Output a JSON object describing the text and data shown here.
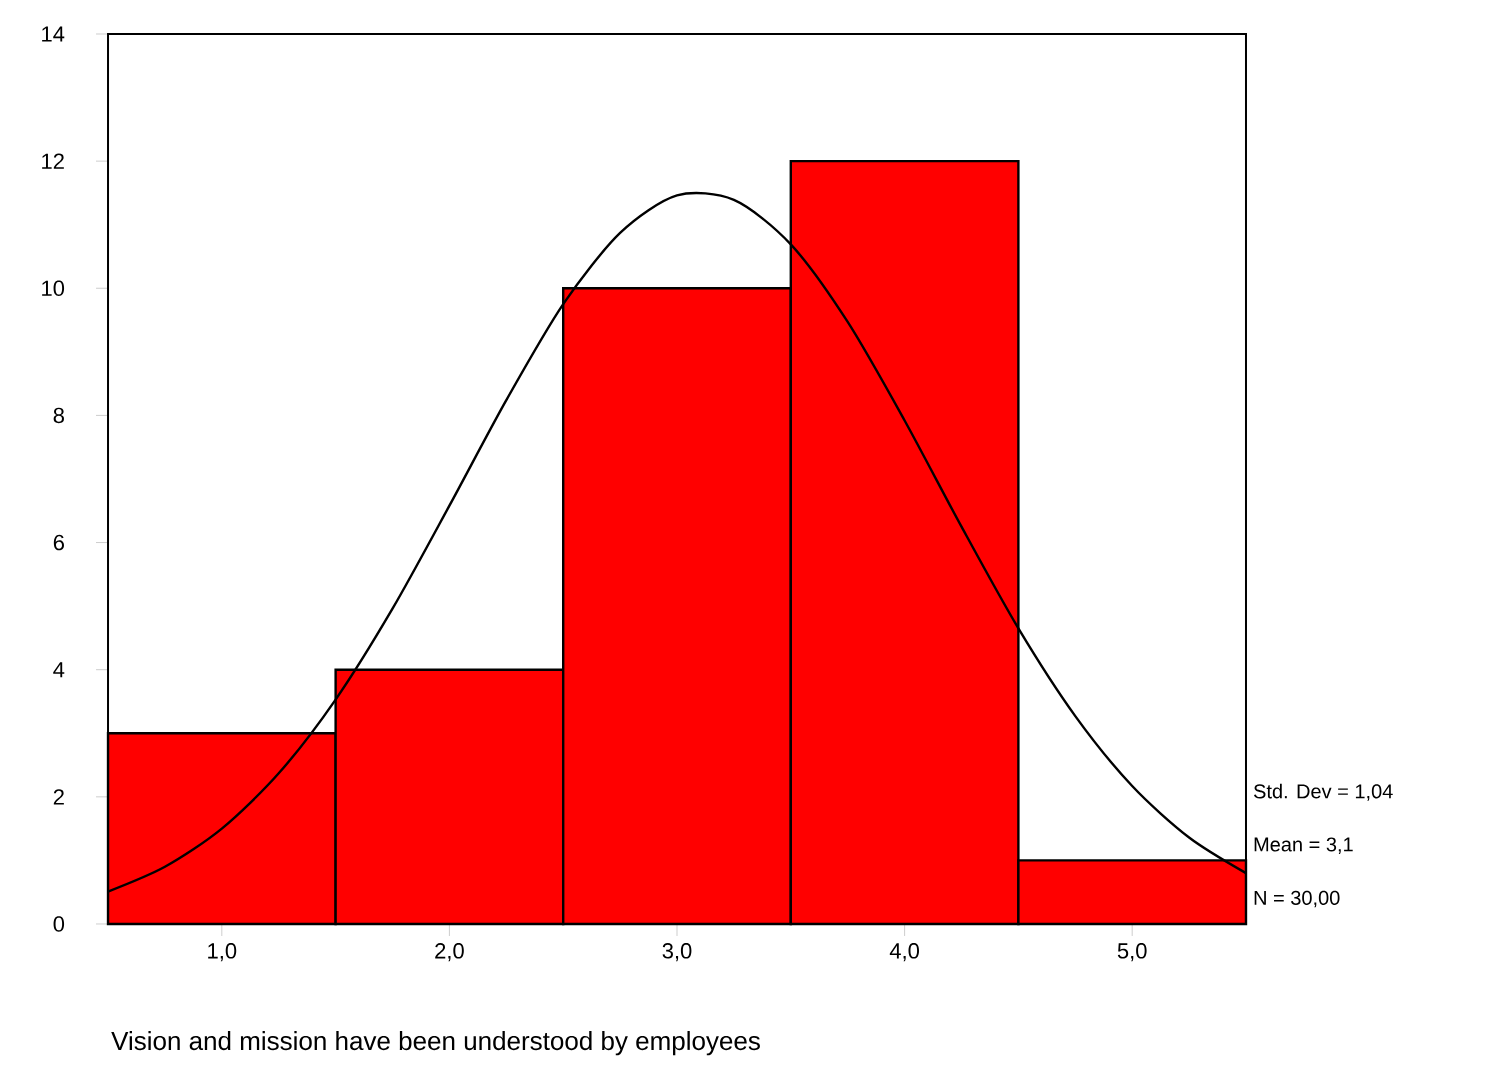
{
  "chart_data": {
    "type": "histogram",
    "xlabel": "Vision and mission have been understood by employees",
    "series": [
      {
        "bins": [
          0.5,
          1.5,
          2.5,
          3.5,
          4.5,
          5.5
        ],
        "values": [
          3,
          4,
          10,
          12,
          1
        ],
        "color": "#ff0000"
      },
      {
        "type": "line",
        "color": "#000000",
        "x": [
          0.5,
          0.75,
          1.0,
          1.25,
          1.5,
          1.75,
          2.0,
          2.25,
          2.5,
          2.75,
          3.0,
          3.25,
          3.5,
          3.75,
          4.0,
          4.25,
          4.5,
          4.75,
          5.0,
          5.25,
          5.5
        ],
        "values": [
          0.51,
          0.9,
          1.5,
          2.37,
          3.53,
          4.96,
          6.58,
          8.24,
          9.75,
          10.87,
          11.46,
          11.39,
          10.69,
          9.47,
          7.92,
          6.25,
          4.65,
          3.27,
          2.17,
          1.36,
          0.8
        ]
      }
    ],
    "xlim": [
      0.5,
      5.5
    ],
    "ylim": [
      0,
      14
    ],
    "xticks": [
      {
        "value": 1,
        "label": "1,0"
      },
      {
        "value": 2,
        "label": "2,0"
      },
      {
        "value": 3,
        "label": "3,0"
      },
      {
        "value": 4,
        "label": "4,0"
      },
      {
        "value": 5,
        "label": "5,0"
      }
    ],
    "yticks": [
      0,
      2,
      4,
      6,
      8,
      10,
      12,
      14
    ],
    "annotations": [
      "Std. Dev = 1,04",
      "Mean = 3,1",
      "N = 30,00"
    ],
    "grid": false,
    "marker": "none",
    "line_style": "solid"
  }
}
